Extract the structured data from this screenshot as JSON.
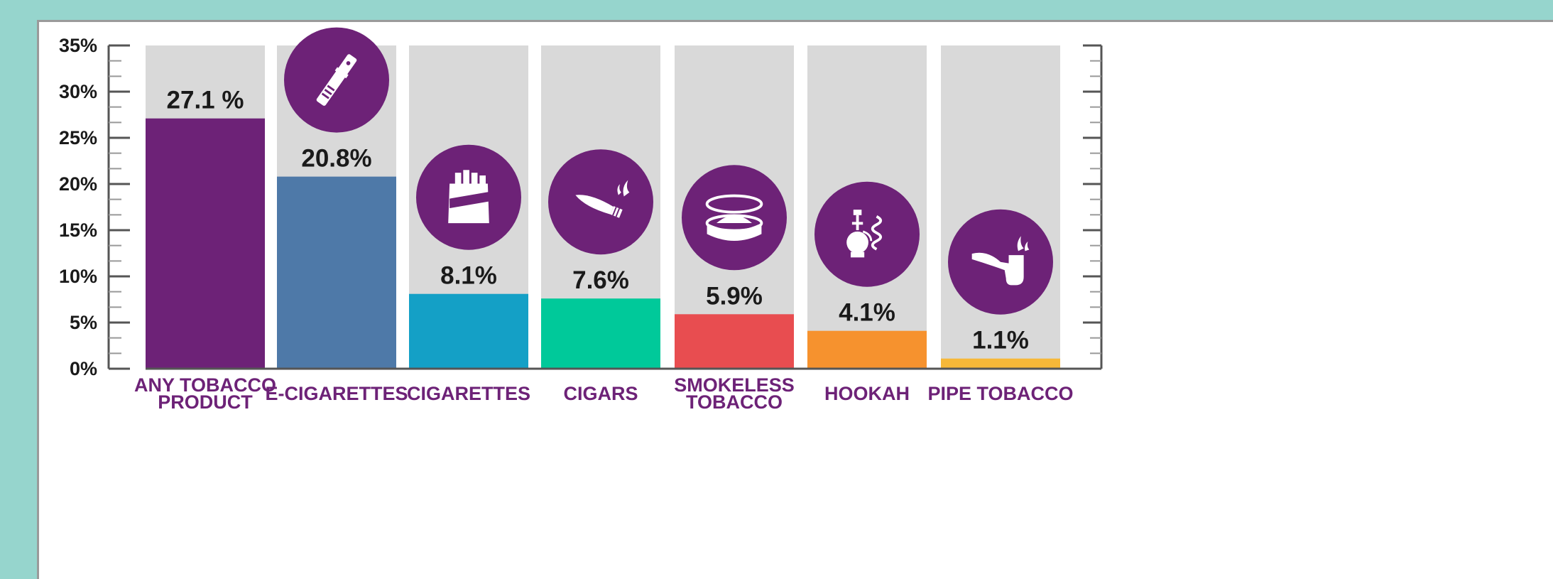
{
  "chart_data": {
    "type": "bar",
    "categories": [
      "ANY TOBACCO PRODUCT",
      "E-CIGARETTES",
      "CIGARETTES",
      "CIGARS",
      "SMOKELESS TOBACCO",
      "HOOKAH",
      "PIPE TOBACCO"
    ],
    "category_lines": [
      [
        "ANY TOBACCO",
        "PRODUCT"
      ],
      [
        "E-CIGARETTES"
      ],
      [
        "CIGARETTES"
      ],
      [
        "CIGARS"
      ],
      [
        "SMOKELESS",
        "TOBACCO"
      ],
      [
        "HOOKAH"
      ],
      [
        "PIPE TOBACCO"
      ]
    ],
    "values": [
      27.1,
      20.8,
      8.1,
      7.6,
      5.9,
      4.1,
      1.1
    ],
    "value_labels": [
      "27.1 %",
      "20.8%",
      "8.1%",
      "7.6%",
      "5.9%",
      "4.1%",
      "1.1%"
    ],
    "icons": [
      "",
      "e-cigarette-icon",
      "cigarette-pack-icon",
      "cigar-icon",
      "smokeless-tobacco-tin-icon",
      "hookah-icon",
      "pipe-icon"
    ],
    "y_ticks": [
      0,
      5,
      10,
      15,
      20,
      25,
      30,
      35
    ],
    "y_tick_labels": [
      "0%",
      "5%",
      "10%",
      "15%",
      "20%",
      "25%",
      "30%",
      "35%"
    ],
    "ylim": [
      0,
      35
    ],
    "grid": false,
    "legend": "none",
    "title": "",
    "xlabel": "",
    "ylabel": ""
  },
  "colors": {
    "bars": [
      "#6d2277",
      "#4e79a8",
      "#14a0c6",
      "#00c99a",
      "#e84d50",
      "#f6922e",
      "#f7b838"
    ],
    "track": "#d9d9d9",
    "icon_circle": "#6d2277",
    "category_text": "#6d2277",
    "axis": "#555555"
  }
}
